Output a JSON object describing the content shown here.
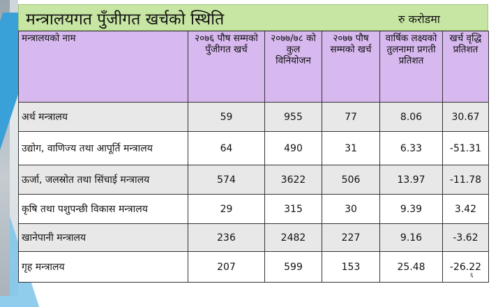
{
  "slide": {
    "title": "मन्त्रालयगत पुँजीगत खर्चको स्थिति",
    "unit": "रु करोडमा",
    "page_number": "६"
  },
  "table": {
    "headers": [
      "मन्त्रालयको नाम",
      "२०७६ पौष सम्मको पुँजीगत खर्च",
      "२०७७/७८ को कुल विनियोजन",
      "२०७७ पौष सम्मको खर्च",
      "वार्षिक लक्ष्यको तुलनामा प्रगती प्रतिशत",
      "खर्च वृद्धि प्रतिशत"
    ],
    "rows": [
      [
        "अर्थ मन्त्रालय",
        "59",
        "955",
        "77",
        "8.06",
        "30.67"
      ],
      [
        "उद्योग, वाणिज्य तथा आपूर्ति मन्त्रालय",
        "64",
        "490",
        "31",
        "6.33",
        "-51.31"
      ],
      [
        "ऊर्जा, जलस्रोत तथा सिंचाई मन्त्रालय",
        "574",
        "3622",
        "506",
        "13.97",
        "-11.78"
      ],
      [
        "कृषि तथा पशुपन्छी विकास मन्त्रालय",
        "29",
        "315",
        "30",
        "9.39",
        "3.42"
      ],
      [
        "खानेपानी मन्त्रालय",
        "236",
        "2482",
        "227",
        "9.16",
        "-3.62"
      ],
      [
        "गृह मन्त्रालय",
        "207",
        "599",
        "153",
        "25.48",
        "-26.22"
      ]
    ]
  }
}
